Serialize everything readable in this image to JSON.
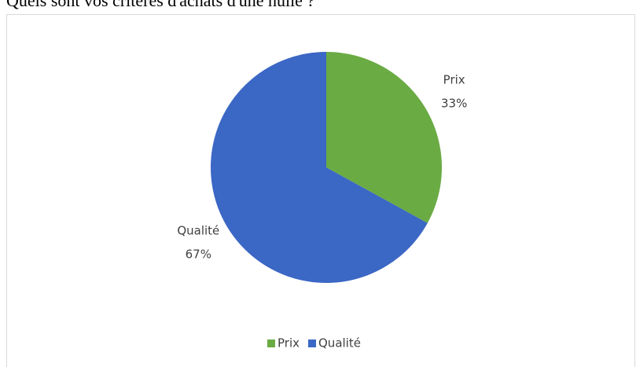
{
  "chart_data": {
    "type": "pie",
    "title": "Quels sont vos critères d'achats d'une huile ?",
    "categories": [
      "Prix",
      "Qualité"
    ],
    "values": [
      33,
      67
    ],
    "value_labels": [
      "33%",
      "67%"
    ],
    "colors": [
      "#6aab44",
      "#3b67c5"
    ],
    "legend": "bottom"
  }
}
